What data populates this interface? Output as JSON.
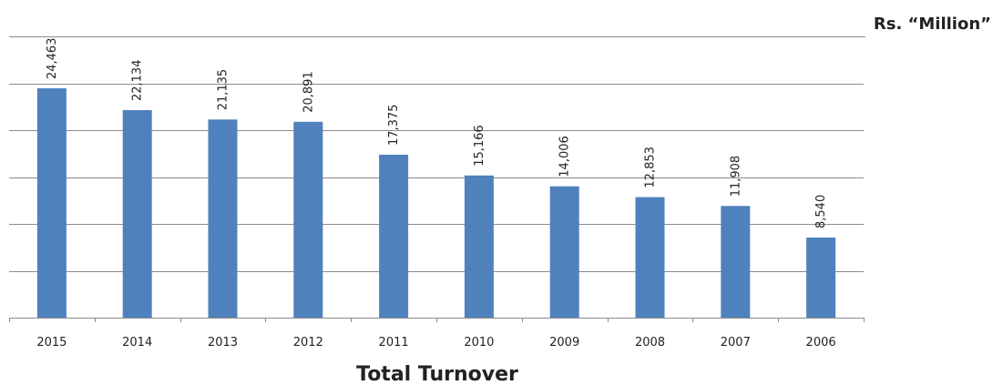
{
  "chart_data": {
    "type": "bar",
    "title": "",
    "unit_label": "Rs. “Million”",
    "xlabel": "Total Turnover",
    "ylabel": "",
    "categories": [
      "2015",
      "2014",
      "2013",
      "2012",
      "2011",
      "2010",
      "2009",
      "2008",
      "2007",
      "2006"
    ],
    "values": [
      24463,
      22134,
      21135,
      20891,
      17375,
      15166,
      14006,
      12853,
      11908,
      8540
    ],
    "data_labels": [
      "24,463",
      "22,134",
      "21,135",
      "20,891",
      "17,375",
      "15,166",
      "14,006",
      "12,853",
      "11,908",
      "8,540"
    ],
    "ylim": [
      0,
      30000
    ],
    "ystep": 5000,
    "grid": true,
    "legend": "none",
    "colors": {
      "bar": "#4f81bd",
      "grid": "#8c8c8c",
      "axis": "#8c8c8c",
      "text": "#222222"
    }
  }
}
